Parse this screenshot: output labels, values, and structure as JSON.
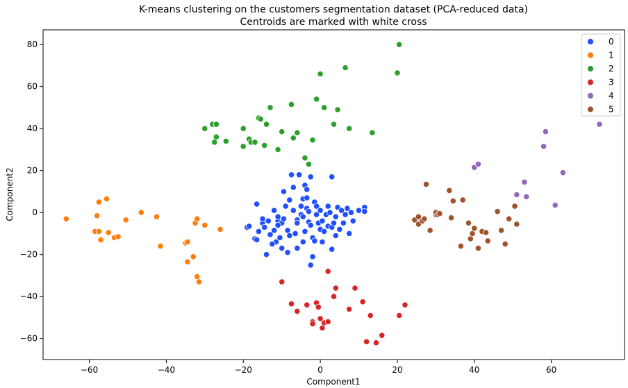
{
  "chart_data": {
    "type": "scatter",
    "title": "K-means clustering on the customers segmentation dataset (PCA-reduced data)",
    "subtitle": "Centroids are marked with white cross",
    "xlabel": "Component1",
    "ylabel": "Component2",
    "xlim": [
      -72,
      79
    ],
    "ylim": [
      -70,
      87
    ],
    "xticks": [
      -60,
      -40,
      -20,
      0,
      20,
      40,
      60
    ],
    "yticks": [
      -60,
      -40,
      -20,
      0,
      20,
      40,
      60,
      80
    ],
    "grid": false,
    "legend_position": "top-right",
    "series": [
      {
        "name": "0",
        "color": "#1f4fff",
        "points": [
          [
            -19,
            -7
          ],
          [
            -18.5,
            -6.5
          ],
          [
            -17,
            -12.5
          ],
          [
            -16.5,
            -13
          ],
          [
            -16.5,
            4
          ],
          [
            -16,
            -9
          ],
          [
            -15,
            -5
          ],
          [
            -15,
            -3
          ],
          [
            -14.5,
            -7
          ],
          [
            -14,
            -20
          ],
          [
            -13,
            -10.5
          ],
          [
            -12,
            -8.5
          ],
          [
            -12,
            1
          ],
          [
            -11.5,
            -14
          ],
          [
            -11,
            -4
          ],
          [
            -11,
            -2
          ],
          [
            -10.5,
            -12
          ],
          [
            -10,
            -17
          ],
          [
            -10,
            -5
          ],
          [
            -9.5,
            -3
          ],
          [
            -9,
            3
          ],
          [
            -8.5,
            -8.5
          ],
          [
            -8.5,
            -19
          ],
          [
            -8,
            -11
          ],
          [
            -8,
            6
          ],
          [
            -7.5,
            18
          ],
          [
            -7,
            12
          ],
          [
            -7,
            1
          ],
          [
            -6.5,
            -10
          ],
          [
            -6,
            -3.5
          ],
          [
            -6,
            -17
          ],
          [
            -6,
            -5
          ],
          [
            -5.5,
            18
          ],
          [
            -5,
            -1
          ],
          [
            -5,
            3
          ],
          [
            -4.5,
            6.5
          ],
          [
            -4.5,
            -14
          ],
          [
            -4.5,
            -2
          ],
          [
            -4,
            -9
          ],
          [
            -4,
            13
          ],
          [
            -3.5,
            11
          ],
          [
            -3.5,
            7
          ],
          [
            -3.5,
            2
          ],
          [
            -3,
            0.5
          ],
          [
            -3,
            -4.5
          ],
          [
            -2.5,
            17
          ],
          [
            -2.5,
            -6
          ],
          [
            -2.5,
            -25
          ],
          [
            -2,
            -12
          ],
          [
            -2,
            -21
          ],
          [
            -1.5,
            -13.5
          ],
          [
            -1.5,
            5
          ],
          [
            -1,
            -1
          ],
          [
            -1,
            3
          ],
          [
            -0.5,
            -5
          ],
          [
            0,
            -8
          ],
          [
            0,
            1
          ],
          [
            0.5,
            -14
          ],
          [
            0.5,
            -4
          ],
          [
            1,
            -9
          ],
          [
            1.5,
            -1
          ],
          [
            2,
            -6.5
          ],
          [
            2,
            3
          ],
          [
            2.5,
            0
          ],
          [
            3,
            17
          ],
          [
            3,
            -17.5
          ],
          [
            3,
            -7
          ],
          [
            3.5,
            -5
          ],
          [
            4,
            -2
          ],
          [
            4,
            -11
          ],
          [
            4.5,
            2.5
          ],
          [
            5,
            -8
          ],
          [
            5.5,
            1
          ],
          [
            6,
            -5
          ],
          [
            6.5,
            -1
          ],
          [
            7,
            2
          ],
          [
            7.5,
            -10
          ],
          [
            8,
            0
          ],
          [
            8.5,
            -4
          ],
          [
            10,
            1
          ],
          [
            11.5,
            2.5
          ],
          [
            11.5,
            0.5
          ],
          [
            -9.5,
            10
          ],
          [
            -11,
            -6
          ],
          [
            -13.5,
            -4
          ],
          [
            -12.5,
            -15
          ]
        ]
      },
      {
        "name": "1",
        "color": "#ff7f0e",
        "points": [
          [
            -66,
            -3
          ],
          [
            -58.5,
            -9
          ],
          [
            -58,
            -1.5
          ],
          [
            -57.5,
            5
          ],
          [
            -57.5,
            -9
          ],
          [
            -57,
            -13
          ],
          [
            -55.5,
            6.5
          ],
          [
            -55,
            -9.5
          ],
          [
            -53.5,
            -12
          ],
          [
            -52.5,
            -11.5
          ],
          [
            -50.5,
            -3.5
          ],
          [
            -46.5,
            0
          ],
          [
            -42.5,
            -2
          ],
          [
            -41.5,
            -16
          ],
          [
            -35,
            -14.5
          ],
          [
            -34.5,
            -14
          ],
          [
            -34.5,
            -23.5
          ],
          [
            -33,
            -21
          ],
          [
            -32.5,
            -5
          ],
          [
            -32,
            -3
          ],
          [
            -32,
            -30.5
          ],
          [
            -31.5,
            -33
          ],
          [
            -30,
            -6
          ],
          [
            -26,
            -8
          ]
        ]
      },
      {
        "name": "2",
        "color": "#2ca02c",
        "points": [
          [
            -30,
            40
          ],
          [
            -28,
            42
          ],
          [
            -27.5,
            34
          ],
          [
            -27.5,
            33.5
          ],
          [
            -27,
            36
          ],
          [
            -27,
            42
          ],
          [
            -24.5,
            34
          ],
          [
            -20,
            40
          ],
          [
            -20,
            31.5
          ],
          [
            -18.5,
            35
          ],
          [
            -18,
            33.5
          ],
          [
            -17,
            33.5
          ],
          [
            -16,
            45
          ],
          [
            -15.5,
            44.5
          ],
          [
            -14.5,
            32
          ],
          [
            -14,
            42
          ],
          [
            -13,
            50
          ],
          [
            -11,
            30
          ],
          [
            -10,
            38.5
          ],
          [
            -7.5,
            51.5
          ],
          [
            -7,
            35.5
          ],
          [
            -6,
            38
          ],
          [
            -4,
            26
          ],
          [
            -3,
            23
          ],
          [
            -2,
            34.5
          ],
          [
            -1,
            54
          ],
          [
            0,
            66
          ],
          [
            1,
            50
          ],
          [
            3.5,
            42
          ],
          [
            4.5,
            49
          ],
          [
            6.5,
            69
          ],
          [
            7.5,
            40
          ],
          [
            13.5,
            38
          ],
          [
            20,
            66.5
          ],
          [
            20.5,
            80
          ]
        ]
      },
      {
        "name": "3",
        "color": "#d62728",
        "points": [
          [
            -10,
            -33
          ],
          [
            -7.5,
            -43.5
          ],
          [
            -6,
            -47
          ],
          [
            -3.5,
            -44
          ],
          [
            -2,
            -52
          ],
          [
            -2,
            -53
          ],
          [
            -1,
            -43
          ],
          [
            -0.5,
            -45
          ],
          [
            0,
            -50.5
          ],
          [
            0.5,
            -55
          ],
          [
            1,
            -52.5
          ],
          [
            2,
            -28
          ],
          [
            2,
            -52
          ],
          [
            3.5,
            -40
          ],
          [
            4,
            -36
          ],
          [
            7.5,
            -46
          ],
          [
            9,
            -36
          ],
          [
            11,
            -42.5
          ],
          [
            12,
            -61.5
          ],
          [
            13,
            -49
          ],
          [
            14.5,
            -62
          ],
          [
            16,
            -58.5
          ],
          [
            20.5,
            -49
          ],
          [
            22,
            -44
          ]
        ]
      },
      {
        "name": "4",
        "color": "#9467bd",
        "points": [
          [
            40,
            21.5
          ],
          [
            41,
            23
          ],
          [
            51,
            8.5
          ],
          [
            53,
            14.5
          ],
          [
            53.5,
            7.5
          ],
          [
            58,
            31.5
          ],
          [
            58.5,
            38.5
          ],
          [
            61,
            3.5
          ],
          [
            63,
            19
          ],
          [
            72.5,
            42
          ]
        ]
      },
      {
        "name": "5",
        "color": "#a0522d",
        "points": [
          [
            24.5,
            -3.5
          ],
          [
            25.5,
            -2
          ],
          [
            25.5,
            -5.5
          ],
          [
            26.5,
            -4
          ],
          [
            27,
            -3
          ],
          [
            27.5,
            13.5
          ],
          [
            28.5,
            -8.5
          ],
          [
            30,
            -1
          ],
          [
            30,
            0
          ],
          [
            30.5,
            -1
          ],
          [
            31,
            -0.5
          ],
          [
            33.5,
            10.5
          ],
          [
            34,
            -2.5
          ],
          [
            34.5,
            5.5
          ],
          [
            36.5,
            -16
          ],
          [
            37,
            6
          ],
          [
            38.5,
            -5
          ],
          [
            39,
            -12.5
          ],
          [
            39.5,
            -10
          ],
          [
            40,
            -7.5
          ],
          [
            41,
            -17
          ],
          [
            42,
            -9
          ],
          [
            43,
            -9.5
          ],
          [
            43.5,
            -13.5
          ],
          [
            46,
            0.5
          ],
          [
            47,
            -8.5
          ],
          [
            48,
            -15
          ],
          [
            49,
            -3
          ],
          [
            50.5,
            3
          ],
          [
            51,
            -5.5
          ]
        ]
      }
    ]
  }
}
